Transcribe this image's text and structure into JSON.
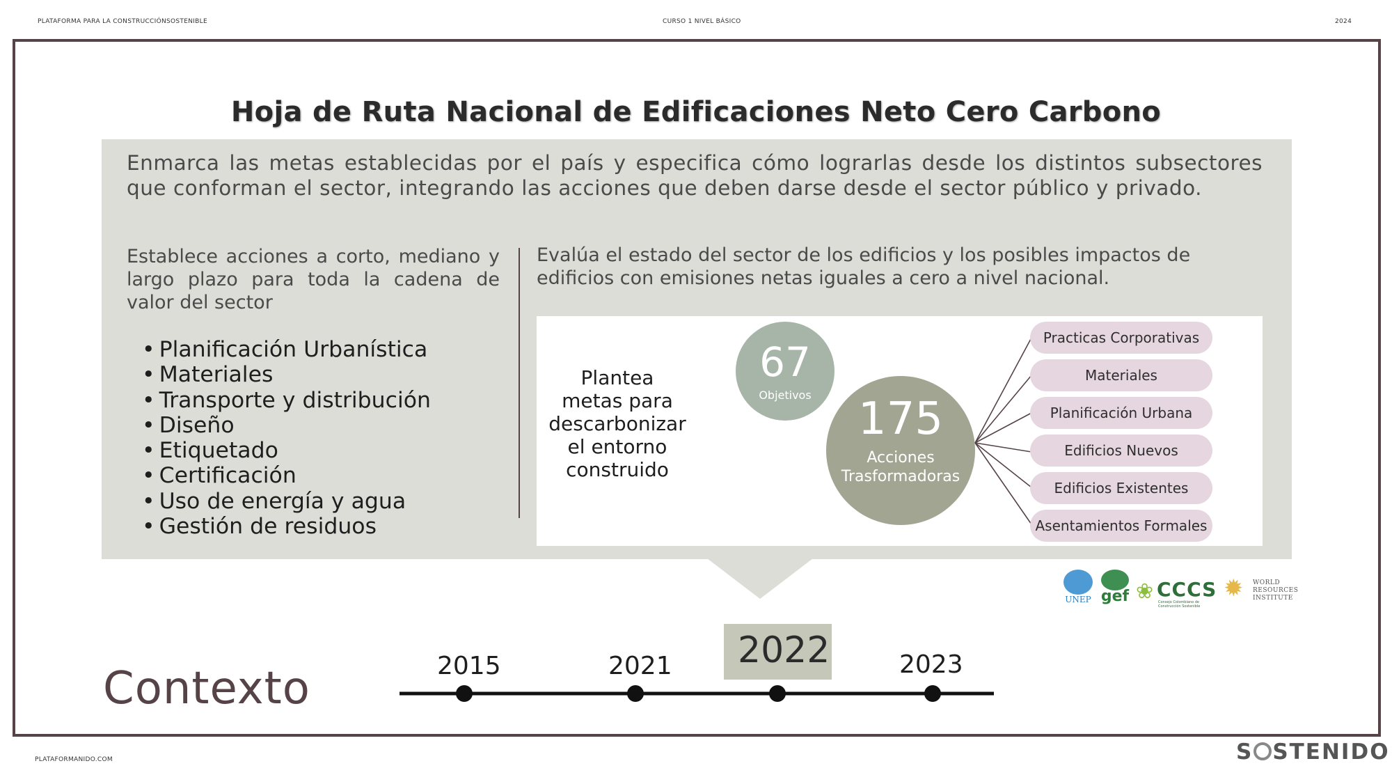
{
  "header": {
    "left": "PLATAFORMA PARA LA CONSTRUCCIÓNSOSTENIBLE",
    "center": "CURSO 1 NIVEL BÁSICO",
    "right": "2024"
  },
  "title": "Hoja de Ruta Nacional de Edificaciones Neto Cero Carbono",
  "intro": "Enmarca las metas establecidas por el país y especifica cómo lograrlas desde los distintos subsectores que conforman el sector, integrando las acciones que deben darse desde el sector público y privado.",
  "left_column": {
    "description": "Establece acciones a corto, mediano y largo plazo para toda la cadena de valor del sector",
    "items": [
      "Planificación Urbanística",
      "Materiales",
      "Transporte y distribución",
      "Diseño",
      "Etiquetado",
      "Certificación",
      "Uso de energía y agua",
      "Gestión de residuos"
    ]
  },
  "right_column": {
    "description": "Evalúa el estado del sector de los edificios y los posibles impactos de edificios con emisiones netas iguales a cero a nivel nacional.",
    "diagram": {
      "plantea": "Plantea metas para descarbonizar el entorno construido",
      "objetivos": {
        "number": "67",
        "label": "Objetivos",
        "color": "#a7b5a8"
      },
      "acciones": {
        "number": "175",
        "label": "Acciones Trasformadoras",
        "color": "#a3a593"
      },
      "subsectors": [
        "Practicas Corporativas",
        "Materiales",
        "Planificación Urbana",
        "Edificios Nuevos",
        "Edificios Existentes",
        "Asentamientos Formales"
      ]
    }
  },
  "logos": {
    "unep": "UNEP",
    "gef": "gef",
    "cccs": "CCCS",
    "cccs_sub": "Consejo Colombiano de Construcción Sostenible",
    "wri_lines": [
      "WORLD",
      "RESOURCES",
      "INSTITUTE"
    ]
  },
  "timeline": {
    "years": [
      "2015",
      "2021",
      "2022",
      "2023"
    ],
    "highlighted": "2022"
  },
  "section_label": "Contexto",
  "footer": {
    "left": "PLATAFORMANIDO.COM",
    "brand_start": "S",
    "brand_end": "STENIDO"
  },
  "colors": {
    "frame": "#554348",
    "panel": "#dcddd7",
    "pill": "#e6d6df"
  }
}
